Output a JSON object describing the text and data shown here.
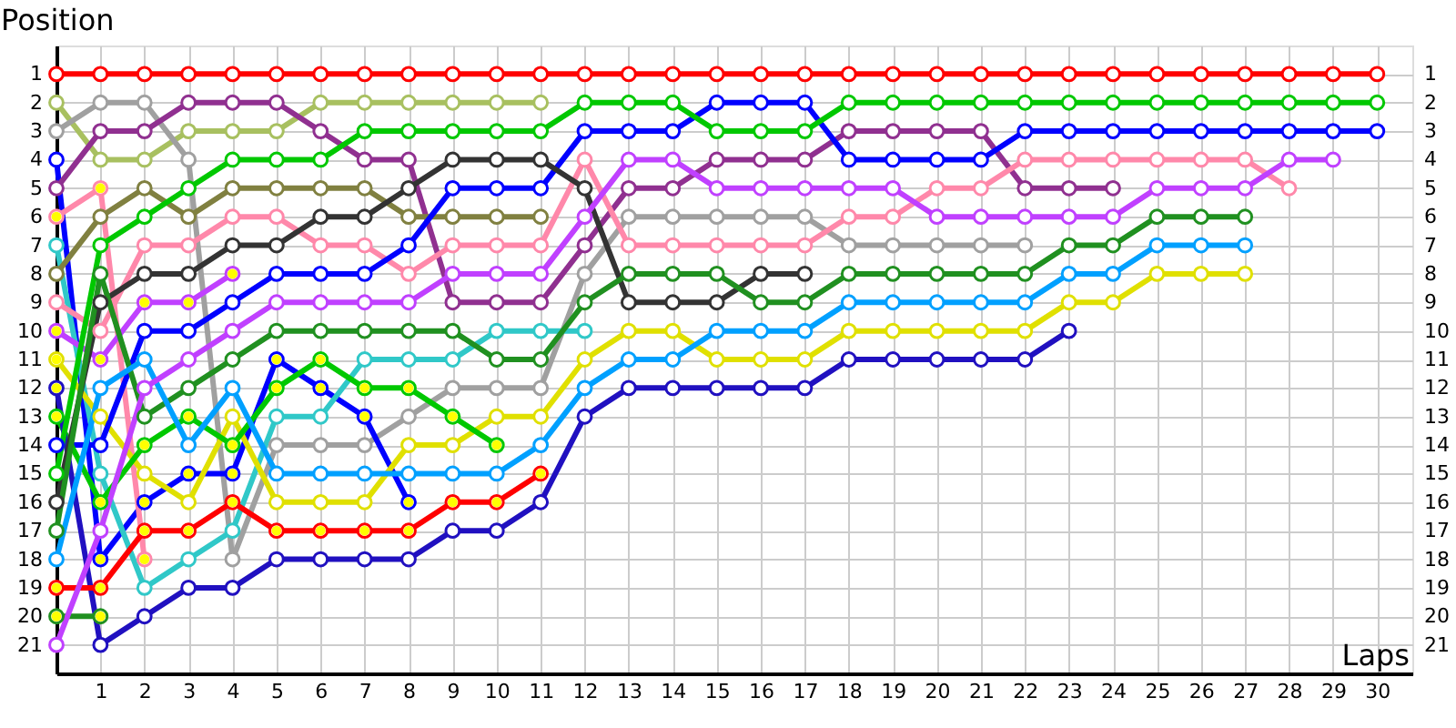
{
  "chart_data": {
    "type": "line",
    "xlabel": "Laps",
    "ylabel": "Position",
    "marker": "circle",
    "grid": true,
    "legend": false,
    "x": [
      0,
      1,
      2,
      3,
      4,
      5,
      6,
      7,
      8,
      9,
      10,
      11,
      12,
      13,
      14,
      15,
      16,
      17,
      18,
      19,
      20,
      21,
      22,
      23,
      24,
      25,
      26,
      27,
      28,
      29,
      30
    ],
    "xlim": [
      0,
      30.8
    ],
    "xticks": [
      1,
      2,
      3,
      4,
      5,
      6,
      7,
      8,
      9,
      10,
      11,
      12,
      13,
      14,
      15,
      16,
      17,
      18,
      19,
      20,
      21,
      22,
      23,
      24,
      25,
      26,
      27,
      28,
      29,
      30
    ],
    "ylim": [
      22,
      0
    ],
    "yticks": [
      1,
      2,
      3,
      4,
      5,
      6,
      7,
      8,
      9,
      10,
      11,
      12,
      13,
      14,
      15,
      16,
      17,
      18,
      19,
      20,
      21
    ],
    "y2lim": [
      22,
      0
    ],
    "y2ticks": [
      1,
      2,
      3,
      4,
      5,
      6,
      7,
      8,
      9,
      10,
      11,
      12,
      13,
      14,
      15,
      16,
      17,
      18,
      19,
      20,
      21
    ],
    "series": [
      {
        "color": "#ff0000",
        "values": [
          1,
          1,
          1,
          1,
          1,
          1,
          1,
          1,
          1,
          1,
          1,
          1,
          1,
          1,
          1,
          1,
          1,
          1,
          1,
          1,
          1,
          1,
          1,
          1,
          1,
          1,
          1,
          1,
          1,
          1,
          1
        ]
      },
      {
        "color": "#a8c060",
        "values": [
          2,
          4,
          4,
          3,
          3,
          3,
          2,
          2,
          2,
          2,
          2,
          2,
          null,
          null,
          null,
          null,
          null,
          null,
          null,
          null,
          null,
          null,
          null,
          null,
          null,
          null,
          null,
          null,
          null,
          null,
          null
        ]
      },
      {
        "color": "#a0a0a0",
        "values": [
          3,
          2,
          2,
          4,
          18,
          14,
          14,
          14,
          13,
          12,
          12,
          12,
          8,
          6,
          6,
          6,
          6,
          6,
          7,
          7,
          7,
          7,
          7,
          null,
          null,
          null,
          null,
          null,
          null,
          null,
          null
        ]
      },
      {
        "color": "#0000ff",
        "values": [
          4,
          18,
          16,
          15,
          15,
          11,
          12,
          13,
          16,
          null,
          null,
          null,
          null,
          null,
          null,
          null,
          null,
          null,
          null,
          null,
          null,
          null,
          null,
          null,
          null,
          null,
          null,
          null,
          null,
          null,
          null
        ]
      },
      {
        "color": "#903090",
        "values": [
          5,
          3,
          3,
          2,
          2,
          2,
          3,
          4,
          4,
          9,
          9,
          9,
          7,
          5,
          5,
          4,
          4,
          4,
          3,
          3,
          3,
          3,
          5,
          5,
          5,
          null,
          null,
          null,
          null,
          null,
          null
        ]
      },
      {
        "color": "#ff88aa",
        "values": [
          6,
          5,
          18,
          null,
          null,
          null,
          null,
          null,
          null,
          null,
          null,
          null,
          null,
          null,
          null,
          null,
          null,
          null,
          null,
          null,
          null,
          null,
          null,
          null,
          null,
          null,
          null,
          null,
          null,
          null,
          null
        ]
      },
      {
        "color": "#30c8c8",
        "values": [
          7,
          15,
          19,
          18,
          17,
          13,
          13,
          11,
          11,
          11,
          10,
          10,
          10,
          null,
          null,
          null,
          null,
          null,
          null,
          null,
          null,
          null,
          null,
          null,
          null,
          null,
          null,
          null,
          null,
          null,
          null
        ]
      },
      {
        "color": "#808040",
        "values": [
          8,
          6,
          5,
          6,
          5,
          5,
          5,
          5,
          6,
          6,
          6,
          6,
          null,
          null,
          null,
          null,
          null,
          null,
          null,
          null,
          null,
          null,
          null,
          null,
          null,
          null,
          null,
          null,
          null,
          null,
          null
        ]
      },
      {
        "color": "#ff88aa",
        "values": [
          9,
          10,
          7,
          7,
          6,
          6,
          7,
          7,
          8,
          7,
          7,
          7,
          4,
          7,
          7,
          7,
          7,
          7,
          6,
          6,
          5,
          5,
          4,
          4,
          4,
          4,
          4,
          4,
          5,
          null,
          null
        ]
      },
      {
        "color": "#c040ff",
        "values": [
          10,
          11,
          9,
          9,
          8,
          null,
          null,
          null,
          null,
          null,
          null,
          null,
          null,
          null,
          null,
          null,
          null,
          null,
          null,
          null,
          null,
          null,
          null,
          null,
          null,
          null,
          null,
          null,
          null,
          null,
          null
        ]
      },
      {
        "color": "#e0e000",
        "values": [
          11,
          13,
          15,
          16,
          13,
          16,
          16,
          16,
          14,
          14,
          13,
          13,
          11,
          10,
          10,
          11,
          11,
          11,
          10,
          10,
          10,
          10,
          10,
          9,
          9,
          8,
          8,
          8,
          null,
          null,
          null
        ]
      },
      {
        "color": "#0000ff",
        "values": [
          14,
          14,
          10,
          10,
          9,
          8,
          8,
          8,
          7,
          5,
          5,
          5,
          3,
          3,
          3,
          2,
          2,
          2,
          4,
          4,
          4,
          4,
          3,
          3,
          3,
          3,
          3,
          3,
          3,
          3,
          3
        ]
      },
      {
        "color": "#00c800",
        "values": [
          13,
          16,
          14,
          13,
          14,
          12,
          11,
          12,
          12,
          13,
          14,
          null,
          null,
          null,
          null,
          null,
          null,
          null,
          null,
          null,
          null,
          null,
          null,
          null,
          null,
          null,
          null,
          null,
          null,
          null,
          null
        ]
      },
      {
        "color": "#2010c0",
        "values": [
          12,
          21,
          20,
          19,
          19,
          18,
          18,
          18,
          18,
          17,
          17,
          16,
          13,
          12,
          12,
          12,
          12,
          12,
          11,
          11,
          11,
          11,
          11,
          10,
          null,
          null,
          null,
          null,
          null,
          null,
          null
        ]
      },
      {
        "color": "#00c800",
        "values": [
          15,
          7,
          6,
          5,
          4,
          4,
          4,
          3,
          3,
          3,
          3,
          3,
          2,
          2,
          2,
          3,
          3,
          3,
          2,
          2,
          2,
          2,
          2,
          2,
          2,
          2,
          2,
          2,
          2,
          2,
          2
        ]
      },
      {
        "color": "#333333",
        "values": [
          16,
          9,
          8,
          8,
          7,
          7,
          6,
          6,
          5,
          4,
          4,
          4,
          5,
          9,
          9,
          9,
          8,
          8,
          null,
          null,
          null,
          null,
          null,
          null,
          null,
          null,
          null,
          null,
          null,
          null,
          null
        ]
      },
      {
        "color": "#209020",
        "values": [
          17,
          8,
          13,
          12,
          11,
          10,
          10,
          10,
          10,
          10,
          11,
          11,
          9,
          8,
          8,
          8,
          9,
          9,
          8,
          8,
          8,
          8,
          8,
          7,
          7,
          6,
          6,
          6,
          null,
          null,
          null
        ]
      },
      {
        "color": "#00a0ff",
        "values": [
          18,
          12,
          11,
          14,
          12,
          15,
          15,
          15,
          15,
          15,
          15,
          14,
          12,
          11,
          11,
          10,
          10,
          10,
          9,
          9,
          9,
          9,
          9,
          8,
          8,
          7,
          7,
          7,
          null,
          null,
          null
        ]
      },
      {
        "color": "#ff0000",
        "values": [
          19,
          19,
          17,
          17,
          16,
          17,
          17,
          17,
          17,
          16,
          16,
          15,
          null,
          null,
          null,
          null,
          null,
          null,
          null,
          null,
          null,
          null,
          null,
          null,
          null,
          null,
          null,
          null,
          null,
          null,
          null
        ]
      },
      {
        "color": "#209020",
        "values": [
          20,
          20,
          null,
          null,
          null,
          null,
          null,
          null,
          null,
          null,
          null,
          null,
          null,
          null,
          null,
          null,
          null,
          null,
          null,
          null,
          null,
          null,
          null,
          null,
          null,
          null,
          null,
          null,
          null,
          null,
          null
        ]
      },
      {
        "color": "#c040ff",
        "values": [
          21,
          17,
          12,
          11,
          10,
          9,
          9,
          9,
          9,
          8,
          8,
          8,
          6,
          4,
          4,
          5,
          5,
          5,
          5,
          5,
          6,
          6,
          6,
          6,
          6,
          5,
          5,
          5,
          4,
          4,
          null
        ]
      },
      {
        "type": "scatter",
        "color": "#ffff00",
        "x": [
          0,
          0,
          0,
          0,
          0,
          0,
          0,
          1,
          1,
          1,
          1,
          1,
          1,
          2,
          2,
          2,
          2,
          2,
          3,
          3,
          3,
          3,
          4,
          4,
          4,
          4,
          5,
          5,
          5,
          6,
          6,
          6,
          7,
          7,
          7,
          8,
          8,
          8,
          9,
          9,
          10,
          10,
          11
        ],
        "values": [
          6,
          10,
          11,
          12,
          13,
          19,
          20,
          5,
          11,
          16,
          18,
          19,
          20,
          18,
          9,
          16,
          14,
          17,
          9,
          15,
          13,
          17,
          8,
          14,
          15,
          16,
          11,
          12,
          17,
          11,
          12,
          17,
          13,
          12,
          17,
          16,
          12,
          17,
          13,
          16,
          14,
          16,
          15
        ]
      }
    ]
  }
}
